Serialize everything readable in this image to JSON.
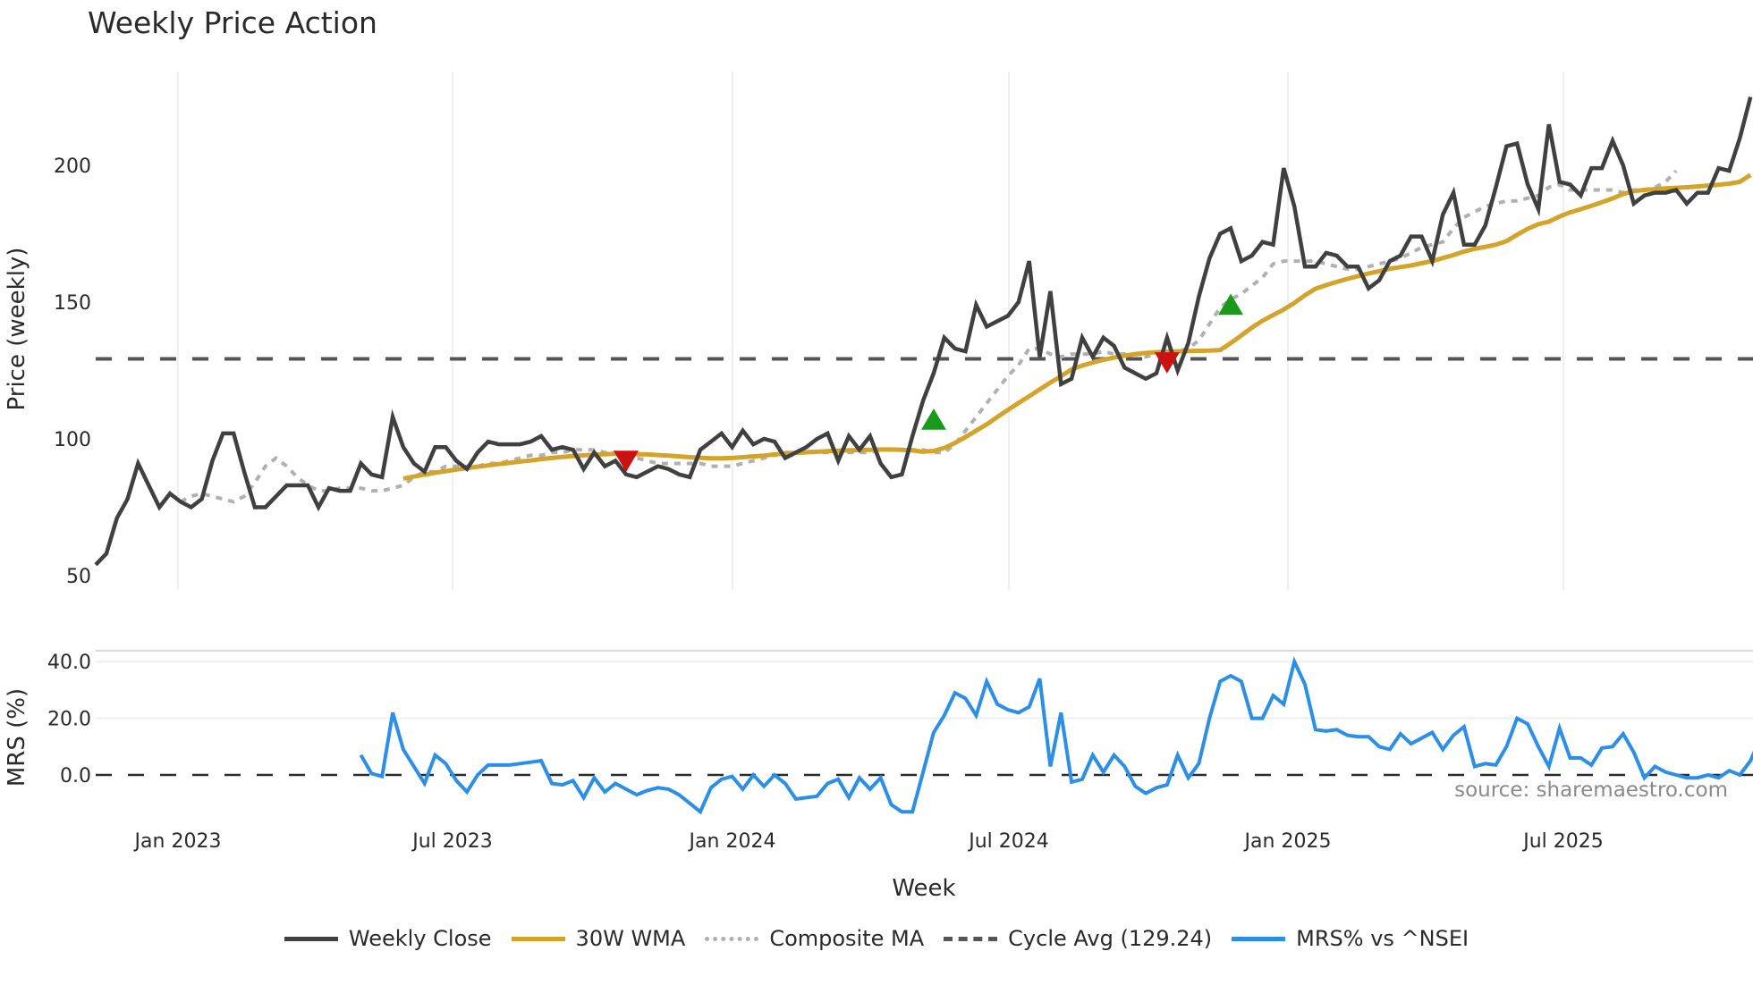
{
  "title": "Weekly Price Action",
  "price_panel": {
    "ylabel": "Price (weekly)",
    "yticks": [
      "50",
      "100",
      "150",
      "200"
    ],
    "cycle_avg": 129.24
  },
  "mrs_panel": {
    "ylabel": "MRS (%)",
    "yticks": [
      "0.0",
      "20.0",
      "40.0"
    ],
    "source": "source: sharemaestro.com"
  },
  "xaxis": {
    "label": "Week",
    "ticks": [
      "Jan 2023",
      "Jul 2023",
      "Jan 2024",
      "Jul 2024",
      "Jan 2025",
      "Jul 2025"
    ]
  },
  "legend": [
    {
      "label": "Weekly Close",
      "color": "#404040",
      "style": "solid"
    },
    {
      "label": "30W WMA",
      "color": "#d4a32a",
      "style": "solid"
    },
    {
      "label": "Composite MA",
      "color": "#b0b0b0",
      "style": "dotted"
    },
    {
      "label": "Cycle Avg (129.24)",
      "color": "#555555",
      "style": "dashed"
    },
    {
      "label": "MRS% vs ^NSEI",
      "color": "#2b8fe8",
      "style": "solid"
    }
  ],
  "colors": {
    "close": "#404040",
    "wma": "#d4a32a",
    "composite": "#b0b0b0",
    "cycle": "#555555",
    "mrs": "#2b8fe8",
    "buy": "#1a9a1a",
    "sell": "#cc1111",
    "grid": "#e8ecf0"
  },
  "chart_data": [
    {
      "type": "line",
      "title": "Weekly Price Action",
      "xlabel": "Week",
      "ylabel": "Price (weekly)",
      "ylim": [
        48,
        228
      ],
      "x_ticks": [
        "Jan 2023",
        "Jul 2023",
        "Jan 2024",
        "Jul 2024",
        "Jan 2025",
        "Jul 2025"
      ],
      "x_start_week_index": 0,
      "grid": true,
      "legend_position": "bottom",
      "series": [
        {
          "name": "Weekly Close",
          "start": 0,
          "values": [
            54,
            58,
            71,
            78,
            91,
            83,
            75,
            80,
            77,
            75,
            78,
            92,
            102,
            102,
            88,
            75,
            75,
            79,
            83,
            83,
            83,
            75,
            82,
            81,
            81,
            91,
            87,
            86,
            108,
            97,
            91,
            88,
            97,
            97,
            92,
            89,
            95,
            99,
            98,
            98,
            98,
            99,
            101,
            96,
            97,
            96,
            89,
            95,
            90,
            92,
            87,
            86,
            88,
            90,
            89,
            87,
            86,
            96,
            99,
            102,
            97,
            103,
            98,
            100,
            99,
            93,
            95,
            97,
            100,
            102,
            92,
            101,
            96,
            101,
            91,
            86,
            87,
            101,
            114,
            124,
            137,
            133,
            132,
            149,
            141,
            143,
            145,
            150,
            165,
            130,
            154,
            120,
            122,
            137,
            130,
            137,
            134,
            126,
            124,
            122,
            124,
            137,
            125,
            135,
            152,
            166,
            175,
            177,
            165,
            167,
            172,
            171,
            199,
            185,
            163,
            163,
            168,
            167,
            163,
            163,
            155,
            158,
            165,
            167,
            174,
            174,
            165,
            182,
            190,
            171,
            171,
            178,
            192,
            207,
            208,
            193,
            184,
            215,
            194,
            193,
            189,
            199,
            199,
            209,
            200,
            186,
            189,
            190,
            190,
            191,
            186,
            190,
            190,
            199,
            198,
            210,
            225
          ]
        },
        {
          "name": "30W WMA",
          "start": 29,
          "values": [
            85.5,
            86.2,
            86.9,
            87.6,
            88.2,
            88.8,
            89.3,
            89.8,
            90.3,
            90.8,
            91.2,
            91.7,
            92.1,
            92.6,
            93.0,
            93.4,
            93.7,
            94.0,
            94.2,
            94.4,
            94.5,
            94.5,
            94.4,
            94.3,
            94.1,
            93.9,
            93.6,
            93.3,
            93.1,
            92.9,
            92.9,
            93.0,
            93.3,
            93.6,
            93.9,
            94.3,
            94.6,
            94.9,
            95.1,
            95.3,
            95.5,
            95.7,
            95.8,
            95.9,
            96.0,
            96.1,
            96.1,
            96.0,
            95.8,
            95.3,
            95.6,
            96.7,
            98.5,
            100.7,
            103.0,
            105.3,
            108.0,
            110.6,
            113.1,
            115.6,
            118.1,
            120.6,
            122.9,
            125.4,
            126.8,
            127.9,
            128.9,
            129.7,
            130.4,
            131.0,
            131.4,
            131.7,
            131.9,
            132.0,
            132.1,
            132.2,
            132.3,
            132.5,
            135.0,
            137.8,
            140.7,
            143.2,
            145.3,
            147.3,
            149.7,
            152.5,
            154.9,
            156.2,
            157.4,
            158.5,
            159.5,
            160.5,
            161.3,
            162.2,
            162.8,
            163.4,
            164.2,
            165.0,
            166.1,
            167.2,
            168.5,
            169.5,
            170.2,
            171.0,
            172.3,
            174.6,
            176.8,
            178.5,
            179.4,
            181.3,
            182.8,
            184.0,
            185.2,
            186.5,
            187.9,
            189.5,
            190.6,
            191.0,
            191.3,
            191.6,
            191.8,
            192.0,
            192.3,
            192.6,
            192.9,
            193.3,
            194.0,
            196.5
          ]
        },
        {
          "name": "Composite MA",
          "start": 8,
          "values": [
            77,
            79,
            80,
            79,
            78,
            77,
            79,
            84,
            90,
            93,
            90,
            86,
            83,
            81,
            81,
            82,
            82,
            82,
            81,
            81,
            82,
            83,
            86,
            88,
            88,
            90,
            90,
            90,
            90,
            91,
            91,
            92,
            93,
            94,
            94,
            95,
            95,
            96,
            96,
            96,
            95,
            95,
            94,
            93,
            92,
            91,
            91,
            91,
            91,
            91,
            90,
            90,
            90,
            91,
            92,
            93,
            94,
            95,
            95,
            95,
            95,
            95,
            95,
            95,
            95,
            95,
            96,
            96,
            96,
            96,
            96,
            95,
            95,
            98,
            103,
            108,
            113,
            118,
            123,
            127,
            133,
            133,
            131,
            130,
            131,
            131,
            131,
            132,
            131,
            131,
            131,
            130,
            131,
            132,
            132,
            133,
            136,
            142,
            148,
            151,
            153,
            156,
            159,
            164,
            165,
            165,
            165,
            165,
            164,
            163,
            162,
            162,
            163,
            164,
            165,
            166,
            168,
            170,
            171,
            172,
            177,
            181,
            183,
            185,
            186,
            187,
            187,
            188,
            189,
            192,
            193,
            191,
            191,
            191,
            191,
            191,
            190,
            191,
            191,
            192,
            194,
            198
          ]
        },
        {
          "name": "Cycle Avg",
          "values": [
            129.24
          ]
        }
      ],
      "markers": [
        {
          "type": "sell",
          "shape": "triangle-down",
          "week_index": 50,
          "price": 92
        },
        {
          "type": "buy",
          "shape": "triangle-up",
          "week_index": 79,
          "price": 107
        },
        {
          "type": "sell",
          "shape": "triangle-down",
          "week_index": 101,
          "price": 128
        },
        {
          "type": "buy",
          "shape": "triangle-up",
          "week_index": 107,
          "price": 149
        }
      ]
    },
    {
      "type": "line",
      "title": "",
      "xlabel": "Week",
      "ylabel": "MRS (%)",
      "ylim": [
        -16,
        44
      ],
      "reference_line": 0,
      "series": [
        {
          "name": "MRS% vs ^NSEI",
          "start": 25,
          "values": [
            7,
            0.5,
            -0.5,
            22,
            9,
            3,
            -3,
            7,
            4,
            -2,
            -6,
            0,
            3.5,
            3.5,
            3.5,
            4,
            4.5,
            5,
            -3,
            -3.5,
            -2,
            -8,
            -1,
            -6,
            -3,
            -5,
            -7,
            -5.5,
            -4.5,
            -5,
            -7,
            -10,
            -13,
            -4.5,
            -1.5,
            -0.5,
            -5,
            0,
            -4,
            0,
            -3,
            -8.5,
            -8,
            -7.5,
            -3,
            -1.5,
            -8,
            -1,
            -5,
            -1,
            -10.5,
            -13,
            -13,
            1,
            15,
            21,
            29,
            27,
            21,
            33,
            25,
            23,
            22,
            24,
            34,
            3,
            22,
            -2.5,
            -1.5,
            7,
            1,
            7,
            3,
            -4,
            -6.5,
            -4.5,
            -3.5,
            7,
            -1,
            4,
            20,
            33,
            35,
            33,
            20,
            20,
            28,
            25,
            40,
            32,
            16,
            15.5,
            16,
            14,
            13.5,
            13.5,
            10,
            9,
            14.5,
            11,
            13,
            15,
            9,
            14,
            17,
            3,
            4,
            3.5,
            10,
            20,
            18,
            10,
            3,
            16.5,
            6,
            6,
            3.5,
            9.5,
            10,
            14.5,
            8,
            -1,
            3,
            1,
            0,
            -1,
            -1,
            0,
            -1,
            1.5,
            0,
            5,
            13.5
          ]
        }
      ]
    }
  ]
}
